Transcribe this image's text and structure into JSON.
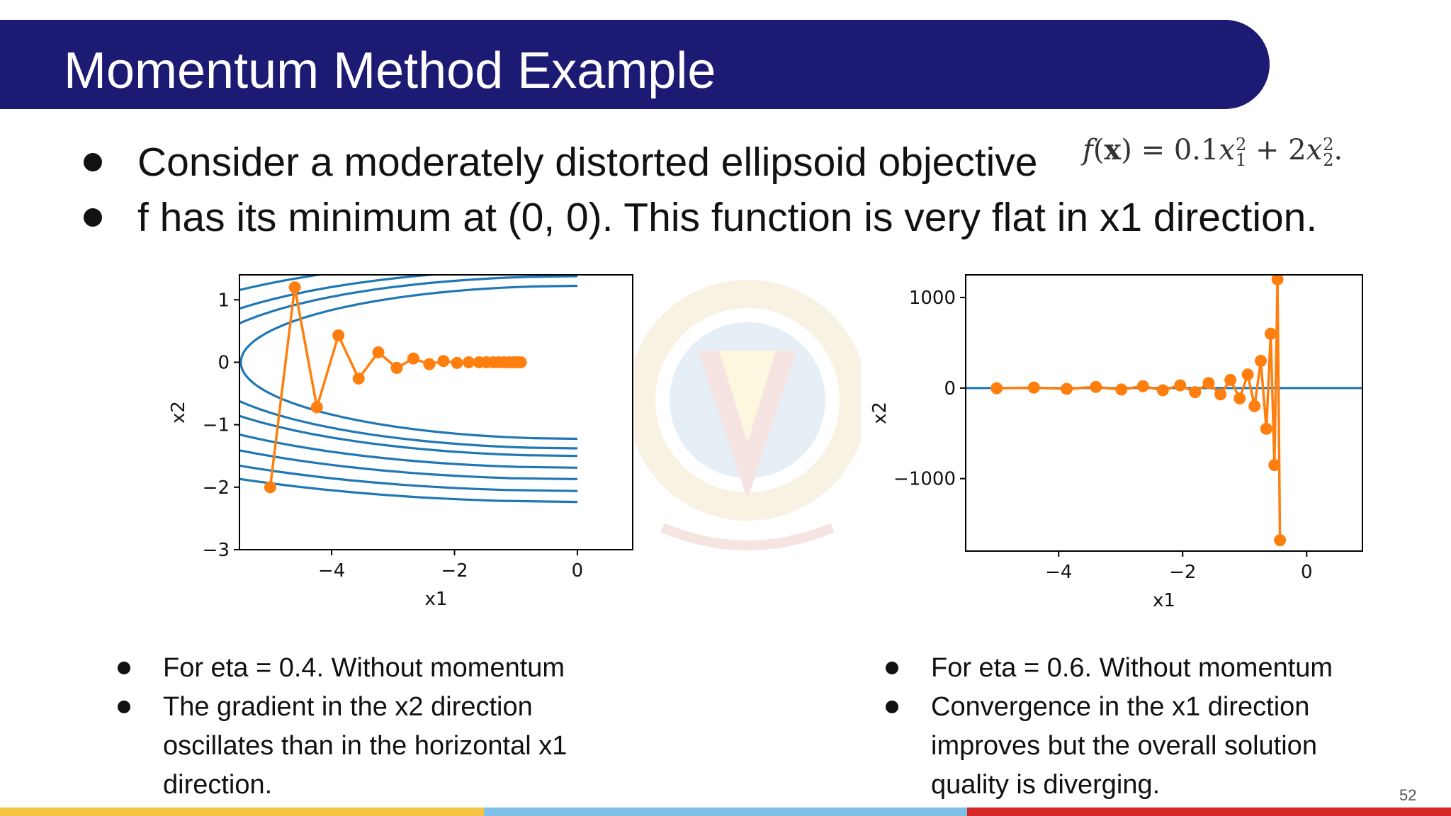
{
  "slide": {
    "title": "Momentum Method Example",
    "bullets": [
      "Consider a moderately distorted ellipsoid objective",
      "f has its minimum at (0, 0). This function is very flat in x1 direction."
    ],
    "page_number": "52"
  },
  "colors": {
    "title_bar": "#1c1a73",
    "series_orange": "#ff7f0e",
    "contour_blue": "#1f77b4",
    "stripe_yellow": "#f4c542",
    "stripe_blue": "#7ec0e6",
    "stripe_red": "#d62828"
  },
  "left_notes": [
    "For eta = 0.4. Without momentum",
    "The gradient in the x2 direction oscillates than in the horizontal x1 direction."
  ],
  "right_notes": [
    "For eta = 0.6. Without momentum",
    "Convergence in the x1 direction improves but the overall solution quality is diverging."
  ],
  "chart_data": [
    {
      "type": "line",
      "xlabel": "x1",
      "ylabel": "x2",
      "xlim": [
        -5.5,
        0.9
      ],
      "ylim": [
        -3,
        1.4
      ],
      "xticks": [
        -4,
        -2,
        0
      ],
      "xtick_labels": [
        "−4",
        "−2",
        "0"
      ],
      "yticks": [
        1,
        0,
        -1,
        -2,
        -3
      ],
      "ytick_labels": [
        "1",
        "0",
        "−1",
        "−2",
        "−3"
      ],
      "contour_levels": [
        3.0,
        3.8,
        4.5,
        5.7,
        7.0,
        8.5,
        10.0
      ],
      "series": [
        {
          "x": [
            -5.0,
            -4.6,
            -4.24,
            -3.89,
            -3.56,
            -3.24,
            -2.94,
            -2.67,
            -2.41,
            -2.18,
            -1.96,
            -1.77,
            -1.6,
            -1.48,
            -1.37,
            -1.28,
            -1.19,
            -1.11,
            -1.04,
            -0.98,
            -0.92
          ],
          "y": [
            -2.0,
            1.2,
            -0.72,
            0.43,
            -0.26,
            0.16,
            -0.09,
            0.06,
            -0.03,
            0.02,
            -0.01,
            0.0,
            0.0,
            0.0,
            0.0,
            0.0,
            0.0,
            0.0,
            0.0,
            0.0,
            0.0
          ]
        }
      ]
    },
    {
      "type": "line",
      "xlabel": "x1",
      "ylabel": "x2",
      "xlim": [
        -5.5,
        0.9
      ],
      "ylim": [
        -1800,
        1250
      ],
      "xticks": [
        -4,
        -2,
        0
      ],
      "xtick_labels": [
        "−4",
        "−2",
        "0"
      ],
      "yticks": [
        1000,
        0,
        -1000
      ],
      "ytick_labels": [
        "1000",
        "0",
        "−1000"
      ],
      "reference_line_y": 0,
      "series": [
        {
          "x": [
            -5.0,
            -4.4,
            -3.87,
            -3.4,
            -2.99,
            -2.64,
            -2.32,
            -2.04,
            -1.8,
            -1.58,
            -1.39,
            -1.23,
            -1.08,
            -0.95,
            -0.84,
            -0.74,
            -0.65,
            -0.58,
            -0.52,
            -0.47,
            -0.43
          ],
          "y": [
            -2,
            5,
            -9,
            12,
            -16,
            20,
            -25,
            30,
            -45,
            55,
            -70,
            90,
            -115,
            150,
            -200,
            300,
            -450,
            600,
            -850,
            1200,
            -1680
          ]
        }
      ]
    }
  ]
}
